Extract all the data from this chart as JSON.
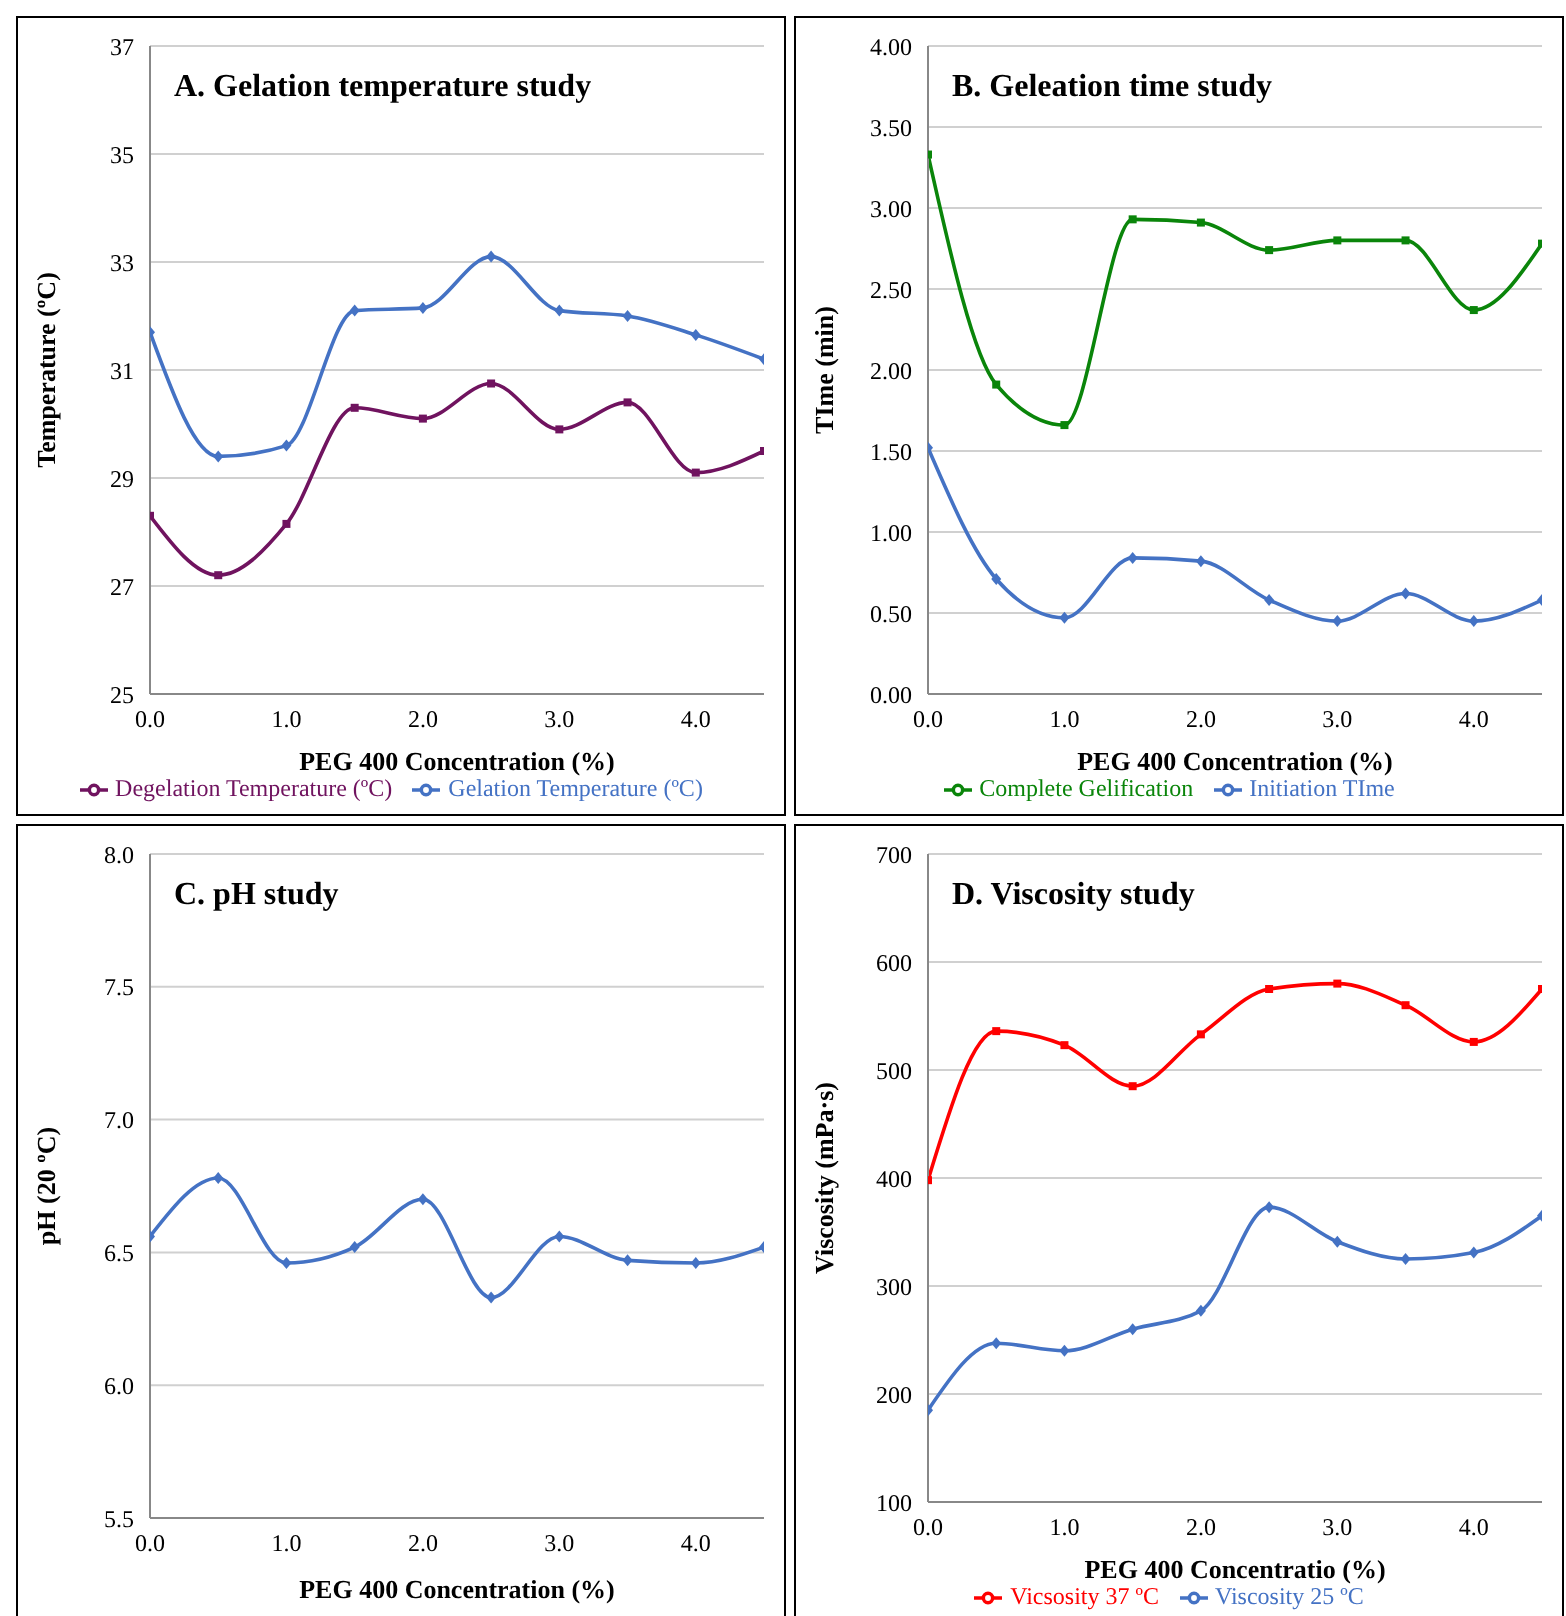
{
  "chart_data": [
    {
      "type": "line",
      "title": "A. Gelation temperature study",
      "xlabel": "PEG 400 Concentration (%)",
      "ylabel": "Temperature (ºC)",
      "x": [
        0,
        0.5,
        1,
        1.5,
        2,
        2.5,
        3,
        3.5,
        4,
        4.5
      ],
      "xlim": [
        0,
        4.5
      ],
      "xticks": [
        {
          "value": 0,
          "label": "0.0"
        },
        {
          "value": 1,
          "label": "1.0"
        },
        {
          "value": 2,
          "label": "2.0"
        },
        {
          "value": 3,
          "label": "3.0"
        },
        {
          "value": 4,
          "label": "4.0"
        }
      ],
      "ylim": [
        25,
        37
      ],
      "yticks": [
        25,
        27,
        29,
        31,
        33,
        35,
        37
      ],
      "grid": "y",
      "legend": "bottom",
      "series": [
        {
          "name": "Gelation Temperature (ºC)",
          "color": "#4472c4",
          "marker": "diamond",
          "values": [
            31.7,
            29.4,
            29.6,
            32.1,
            32.15,
            33.1,
            32.1,
            32.0,
            31.65,
            31.2
          ]
        },
        {
          "name": "Degelation Temperature (ºC)",
          "color": "#70135f",
          "marker": "square",
          "values": [
            28.3,
            27.2,
            28.15,
            30.3,
            30.1,
            30.75,
            29.9,
            30.4,
            29.1,
            29.5
          ]
        }
      ]
    },
    {
      "type": "line",
      "title": "B. Geleation time study",
      "xlabel": "PEG 400 Concentration (%)",
      "ylabel": "TIme (min)",
      "x": [
        0,
        0.5,
        1,
        1.5,
        2,
        2.5,
        3,
        3.5,
        4,
        4.5
      ],
      "xlim": [
        0,
        4.5
      ],
      "xticks": [
        {
          "value": 0,
          "label": "0.0"
        },
        {
          "value": 1,
          "label": "1.0"
        },
        {
          "value": 2,
          "label": "2.0"
        },
        {
          "value": 3,
          "label": "3.0"
        },
        {
          "value": 4,
          "label": "4.0"
        }
      ],
      "ylim": [
        0,
        4
      ],
      "yticks": [
        {
          "value": 0,
          "label": "0.00"
        },
        {
          "value": 0.5,
          "label": "0.50"
        },
        {
          "value": 1,
          "label": "1.00"
        },
        {
          "value": 1.5,
          "label": "1.50"
        },
        {
          "value": 2,
          "label": "2.00"
        },
        {
          "value": 2.5,
          "label": "2.50"
        },
        {
          "value": 3,
          "label": "3.00"
        },
        {
          "value": 3.5,
          "label": "3.50"
        },
        {
          "value": 4,
          "label": "4.00"
        }
      ],
      "grid": "y",
      "legend": "bottom",
      "series": [
        {
          "name": "Initiation TIme",
          "color": "#4472c4",
          "marker": "diamond",
          "values": [
            1.52,
            0.71,
            0.47,
            0.84,
            0.82,
            0.58,
            0.45,
            0.62,
            0.45,
            0.58
          ]
        },
        {
          "name": "Complete Gelification",
          "color": "#0a850a",
          "marker": "square",
          "values": [
            3.33,
            1.91,
            1.66,
            2.93,
            2.91,
            2.74,
            2.8,
            2.8,
            2.37,
            2.78
          ]
        }
      ]
    },
    {
      "type": "line",
      "title": "C. pH study",
      "xlabel": "PEG 400 Concentration (%)",
      "ylabel": "pH  (20 ºC)",
      "x": [
        0,
        0.5,
        1,
        1.5,
        2,
        2.5,
        3,
        3.5,
        4,
        4.5
      ],
      "xlim": [
        0,
        4.5
      ],
      "xticks": [
        {
          "value": 0,
          "label": "0.0"
        },
        {
          "value": 1,
          "label": "1.0"
        },
        {
          "value": 2,
          "label": "2.0"
        },
        {
          "value": 3,
          "label": "3.0"
        },
        {
          "value": 4,
          "label": "4.0"
        }
      ],
      "ylim": [
        5.5,
        8
      ],
      "yticks": [
        5.5,
        {
          "value": 6,
          "label": "6.0"
        },
        6.5,
        {
          "value": 7,
          "label": "7.0"
        },
        7.5,
        {
          "value": 8,
          "label": "8.0"
        }
      ],
      "grid": "y",
      "legend": false,
      "series": [
        {
          "color": "#4472c4",
          "marker": "diamond",
          "values": [
            6.56,
            6.78,
            6.46,
            6.52,
            6.7,
            6.33,
            6.56,
            6.47,
            6.46,
            6.52
          ]
        }
      ]
    },
    {
      "type": "line",
      "title": "D. Viscosity study",
      "xlabel": "PEG 400 Concentratio (%)",
      "ylabel": "Viscosity (mPa·s)",
      "x": [
        0,
        0.5,
        1,
        1.5,
        2,
        2.5,
        3,
        3.5,
        4,
        4.5
      ],
      "xlim": [
        0,
        4.5
      ],
      "xticks": [
        {
          "value": 0,
          "label": "0.0"
        },
        {
          "value": 1,
          "label": "1.0"
        },
        {
          "value": 2,
          "label": "2.0"
        },
        {
          "value": 3,
          "label": "3.0"
        },
        {
          "value": 4,
          "label": "4.0"
        }
      ],
      "ylim": [
        100,
        700
      ],
      "yticks": [
        100,
        200,
        300,
        400,
        500,
        600,
        700
      ],
      "grid": "y",
      "legend": "bottom",
      "series": [
        {
          "name": "Viscosity  25 ºC",
          "color": "#4472c4",
          "marker": "diamond",
          "values": [
            185,
            247,
            240,
            260,
            277,
            373,
            341,
            325,
            331,
            365
          ]
        },
        {
          "name": "Vicsosity 37 ºC",
          "color": "#ff0000",
          "marker": "square",
          "values": [
            398,
            536,
            523,
            485,
            533,
            575,
            580,
            560,
            526,
            575
          ]
        }
      ]
    }
  ]
}
